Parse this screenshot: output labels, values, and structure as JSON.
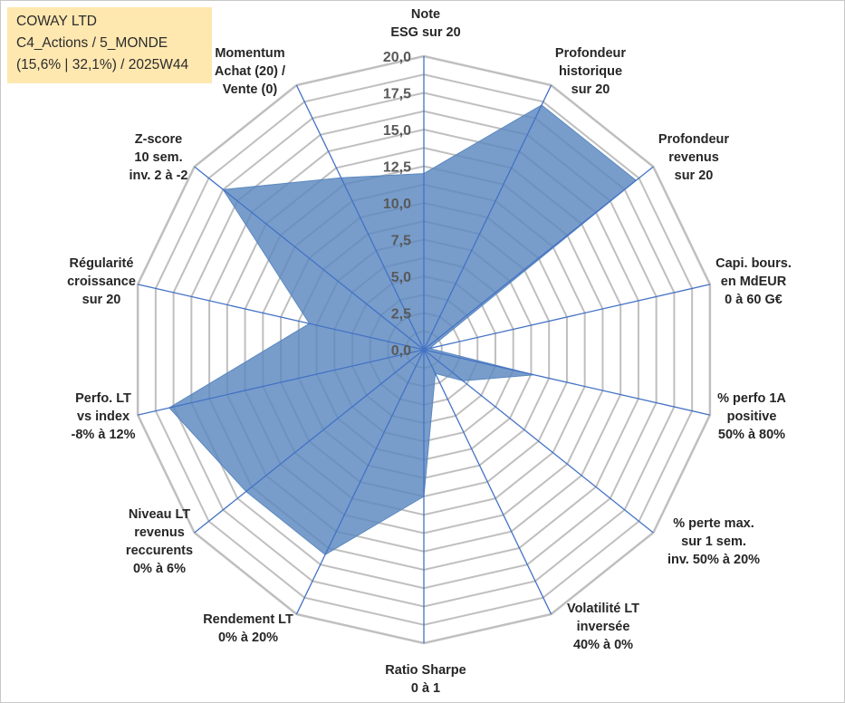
{
  "info_box": {
    "line1": "COWAY LTD",
    "line2": "C4_Actions / 5_MONDE",
    "line3": "(15,6% | 32,1%) / 2025W44"
  },
  "colors": {
    "fill": "#5a88bf",
    "fill_opacity": "0.82",
    "axis": "#4472c4",
    "grid": "#bfbfbf",
    "background": "#ffffff",
    "info_box_bg": "#ffe8b0"
  },
  "chart_data": {
    "type": "radar",
    "title": "",
    "range": [
      0,
      20
    ],
    "ticks": [
      "0,0",
      "2,5",
      "5,0",
      "7,5",
      "10,0",
      "12,5",
      "15,0",
      "17,5",
      "20,0"
    ],
    "axes": [
      {
        "label": [
          "Note",
          "ESG sur 20"
        ],
        "value": 12.0
      },
      {
        "label": [
          "Profondeur",
          "historique",
          "sur 20"
        ],
        "value": 18.5
      },
      {
        "label": [
          "Profondeur",
          "revenus",
          "sur 20"
        ],
        "value": 18.5
      },
      {
        "label": [
          "Capi. bours.",
          "en MdEUR",
          "0 à 60 G€"
        ],
        "value": 0.4
      },
      {
        "label": [
          "% perfo 1A",
          "positive",
          "50% à 80%"
        ],
        "value": 7.7
      },
      {
        "label": [
          "% perte max.",
          "sur 1 sem.",
          "inv. 50% à 20%"
        ],
        "value": 3.4
      },
      {
        "label": [
          "Volatilité LT",
          "inversée",
          "40% à 0%"
        ],
        "value": 1.8
      },
      {
        "label": [
          "Ratio Sharpe",
          "0 à 1"
        ],
        "value": 10.0
      },
      {
        "label": [
          "Rendement LT",
          "0% à 20%"
        ],
        "value": 15.5
      },
      {
        "label": [
          "Niveau LT",
          "revenus",
          "reccurents",
          "0% à 6%"
        ],
        "value": 15.5
      },
      {
        "label": [
          "Perfo. LT",
          "vs index",
          "-8% à 12%"
        ],
        "value": 17.8
      },
      {
        "label": [
          "Régularité",
          "croissance",
          "sur 20"
        ],
        "value": 8.0
      },
      {
        "label": [
          "Z-score",
          "10 sem.",
          "inv. 2 à -2"
        ],
        "value": 17.5
      },
      {
        "label": [
          "Momentum",
          "Achat (20) /",
          "Vente (0)"
        ],
        "value": 13.0
      }
    ]
  }
}
